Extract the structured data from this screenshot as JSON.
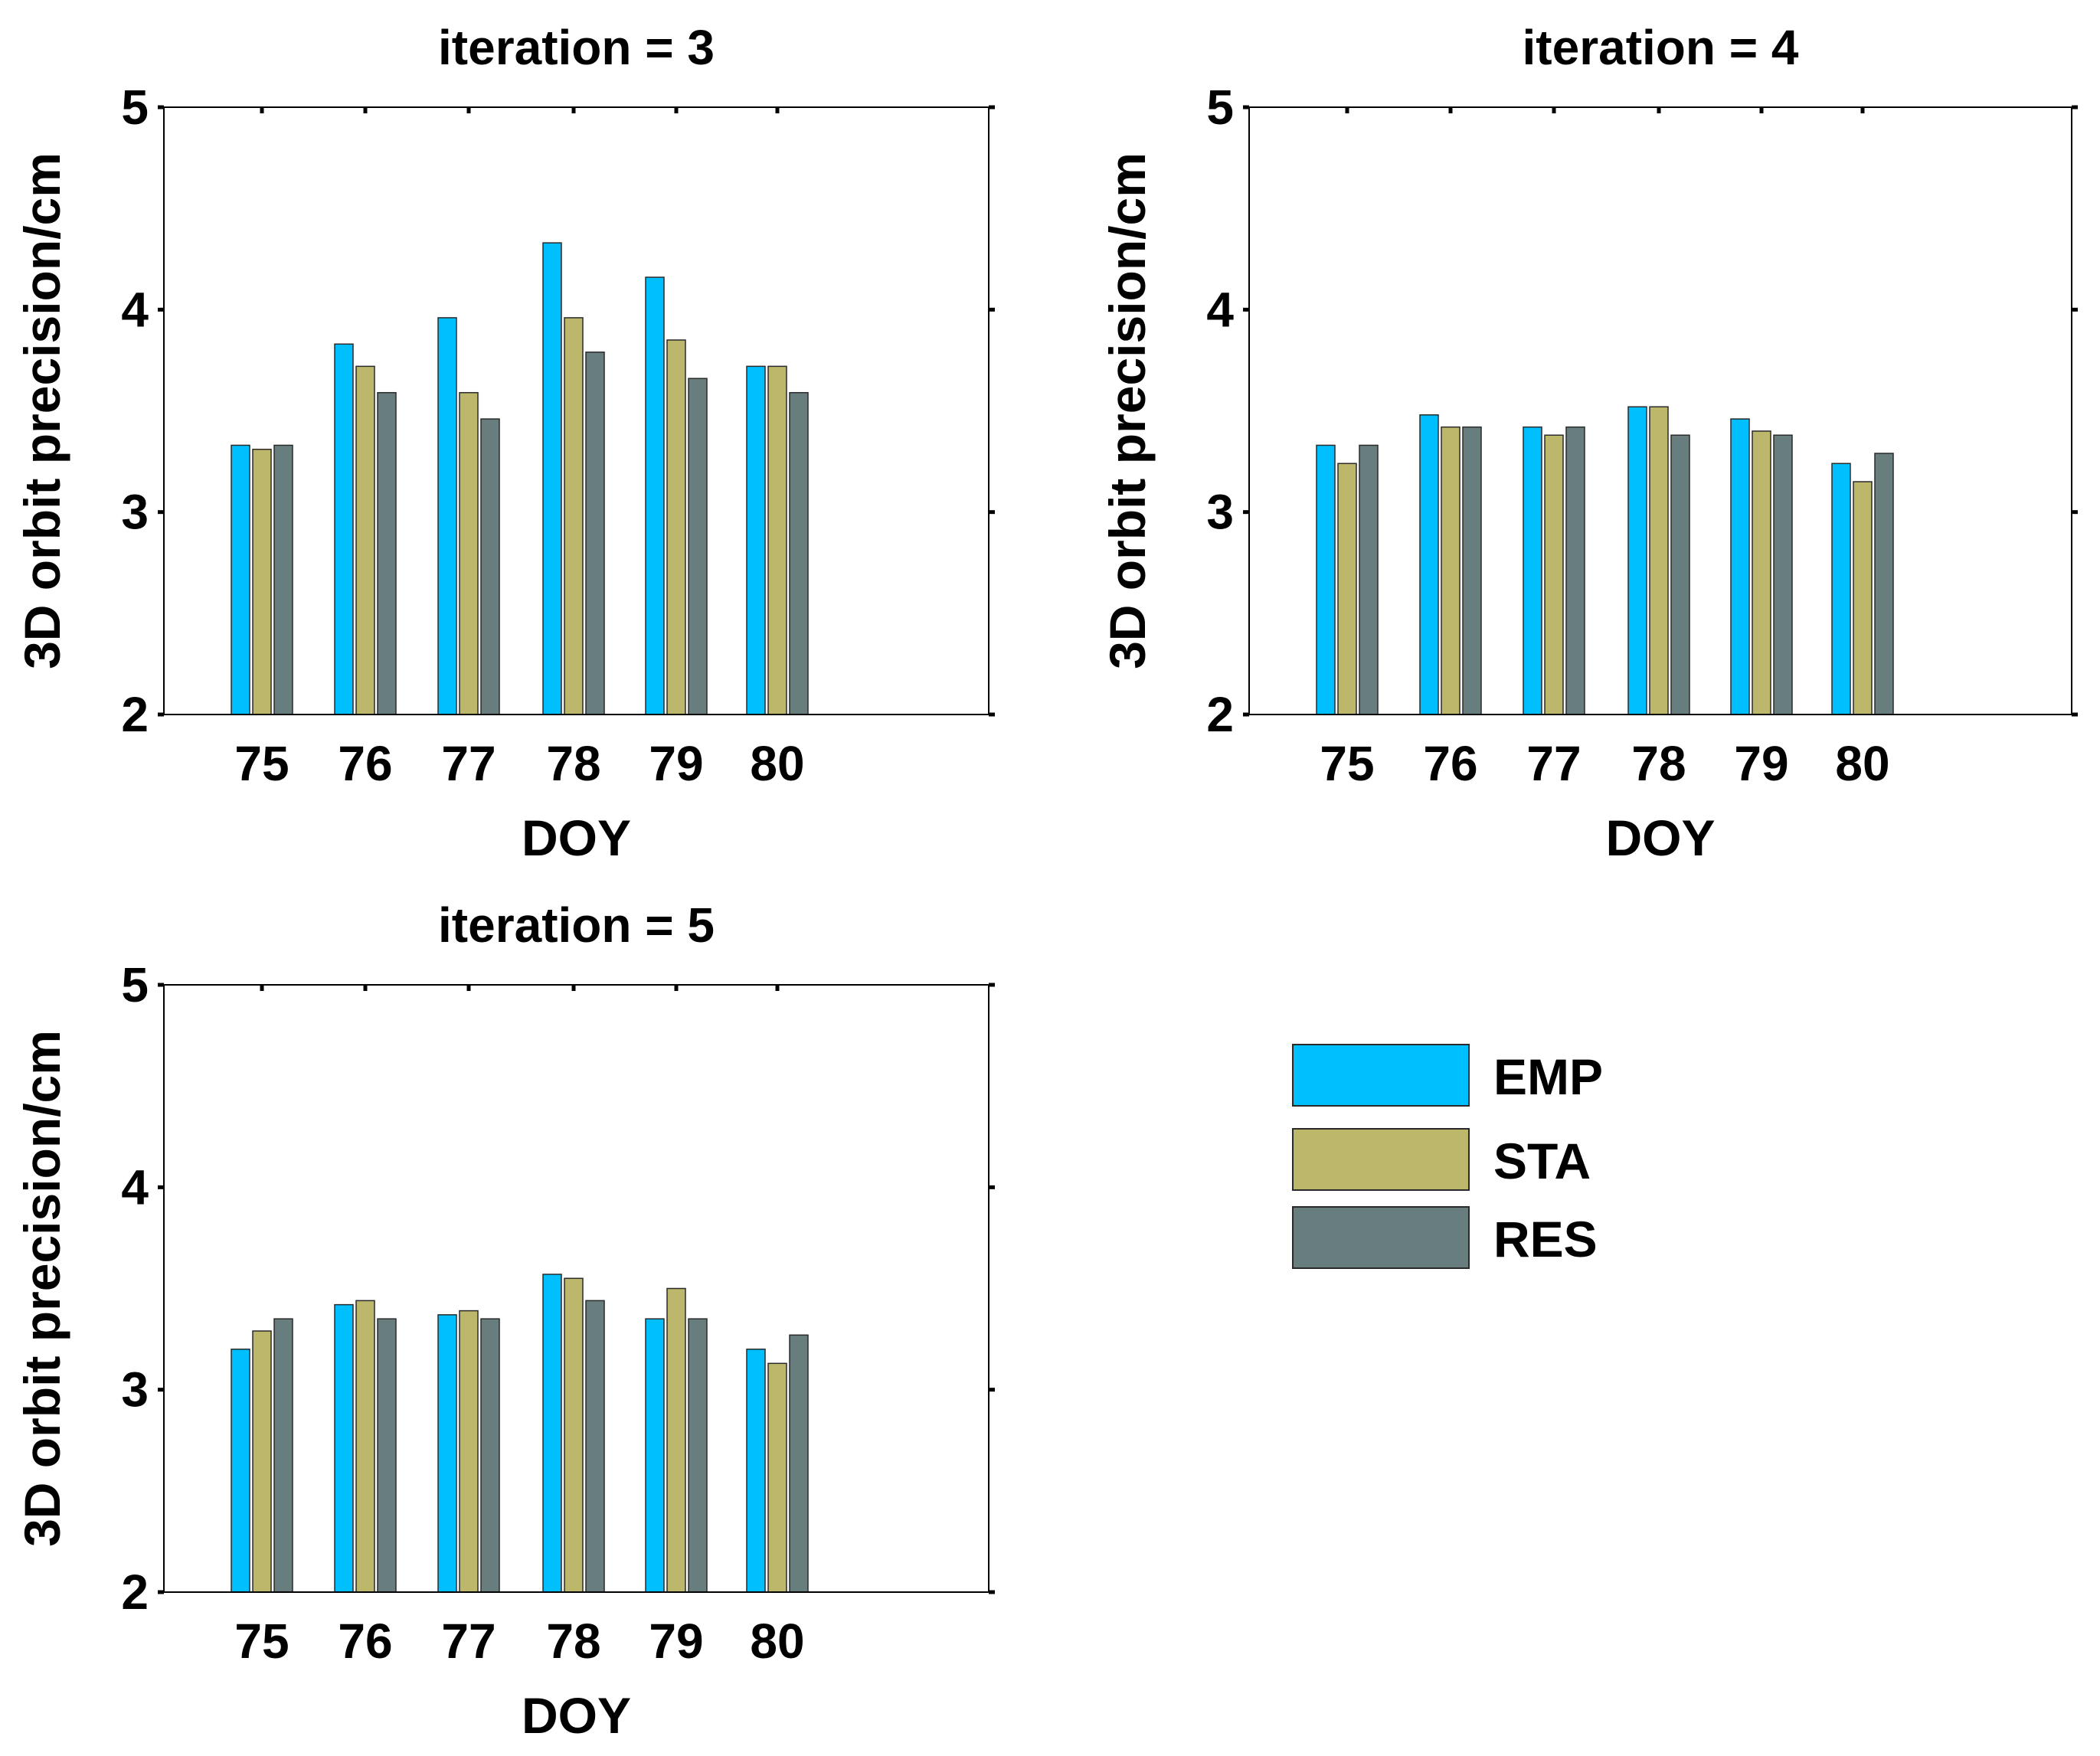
{
  "legend": {
    "items": [
      {
        "name": "EMP",
        "color": "#00BFFF"
      },
      {
        "name": "STA",
        "color": "#BDB76B"
      },
      {
        "name": "RES",
        "color": "#687D7D"
      }
    ]
  },
  "chart_data": [
    {
      "type": "bar",
      "title": "iteration = 3",
      "xlabel": "DOY",
      "ylabel": "3D orbit precision/cm",
      "categories": [
        "75",
        "76",
        "77",
        "78",
        "79",
        "80"
      ],
      "ylim": [
        2,
        5
      ],
      "yticks": [
        "2",
        "3",
        "4",
        "5"
      ],
      "series": [
        {
          "name": "EMP",
          "values": [
            3.33,
            3.83,
            3.96,
            4.33,
            4.16,
            3.72
          ]
        },
        {
          "name": "STA",
          "values": [
            3.31,
            3.72,
            3.59,
            3.96,
            3.85,
            3.72
          ]
        },
        {
          "name": "RES",
          "values": [
            3.33,
            3.59,
            3.46,
            3.79,
            3.66,
            3.59
          ]
        }
      ]
    },
    {
      "type": "bar",
      "title": "iteration = 4",
      "xlabel": "DOY",
      "ylabel": "3D orbit precision/cm",
      "categories": [
        "75",
        "76",
        "77",
        "78",
        "79",
        "80"
      ],
      "ylim": [
        2,
        5
      ],
      "yticks": [
        "2",
        "3",
        "4",
        "5"
      ],
      "series": [
        {
          "name": "EMP",
          "values": [
            3.33,
            3.48,
            3.42,
            3.52,
            3.46,
            3.24
          ]
        },
        {
          "name": "STA",
          "values": [
            3.24,
            3.42,
            3.38,
            3.52,
            3.4,
            3.15
          ]
        },
        {
          "name": "RES",
          "values": [
            3.33,
            3.42,
            3.42,
            3.38,
            3.38,
            3.29
          ]
        }
      ]
    },
    {
      "type": "bar",
      "title": "iteration = 5",
      "xlabel": "DOY",
      "ylabel": "3D orbit precision/cm",
      "categories": [
        "75",
        "76",
        "77",
        "78",
        "79",
        "80"
      ],
      "ylim": [
        2,
        5
      ],
      "yticks": [
        "2",
        "3",
        "4",
        "5"
      ],
      "series": [
        {
          "name": "EMP",
          "values": [
            3.2,
            3.42,
            3.37,
            3.57,
            3.35,
            3.2
          ]
        },
        {
          "name": "STA",
          "values": [
            3.29,
            3.44,
            3.39,
            3.55,
            3.5,
            3.13
          ]
        },
        {
          "name": "RES",
          "values": [
            3.35,
            3.35,
            3.35,
            3.44,
            3.35,
            3.27
          ]
        }
      ]
    }
  ]
}
